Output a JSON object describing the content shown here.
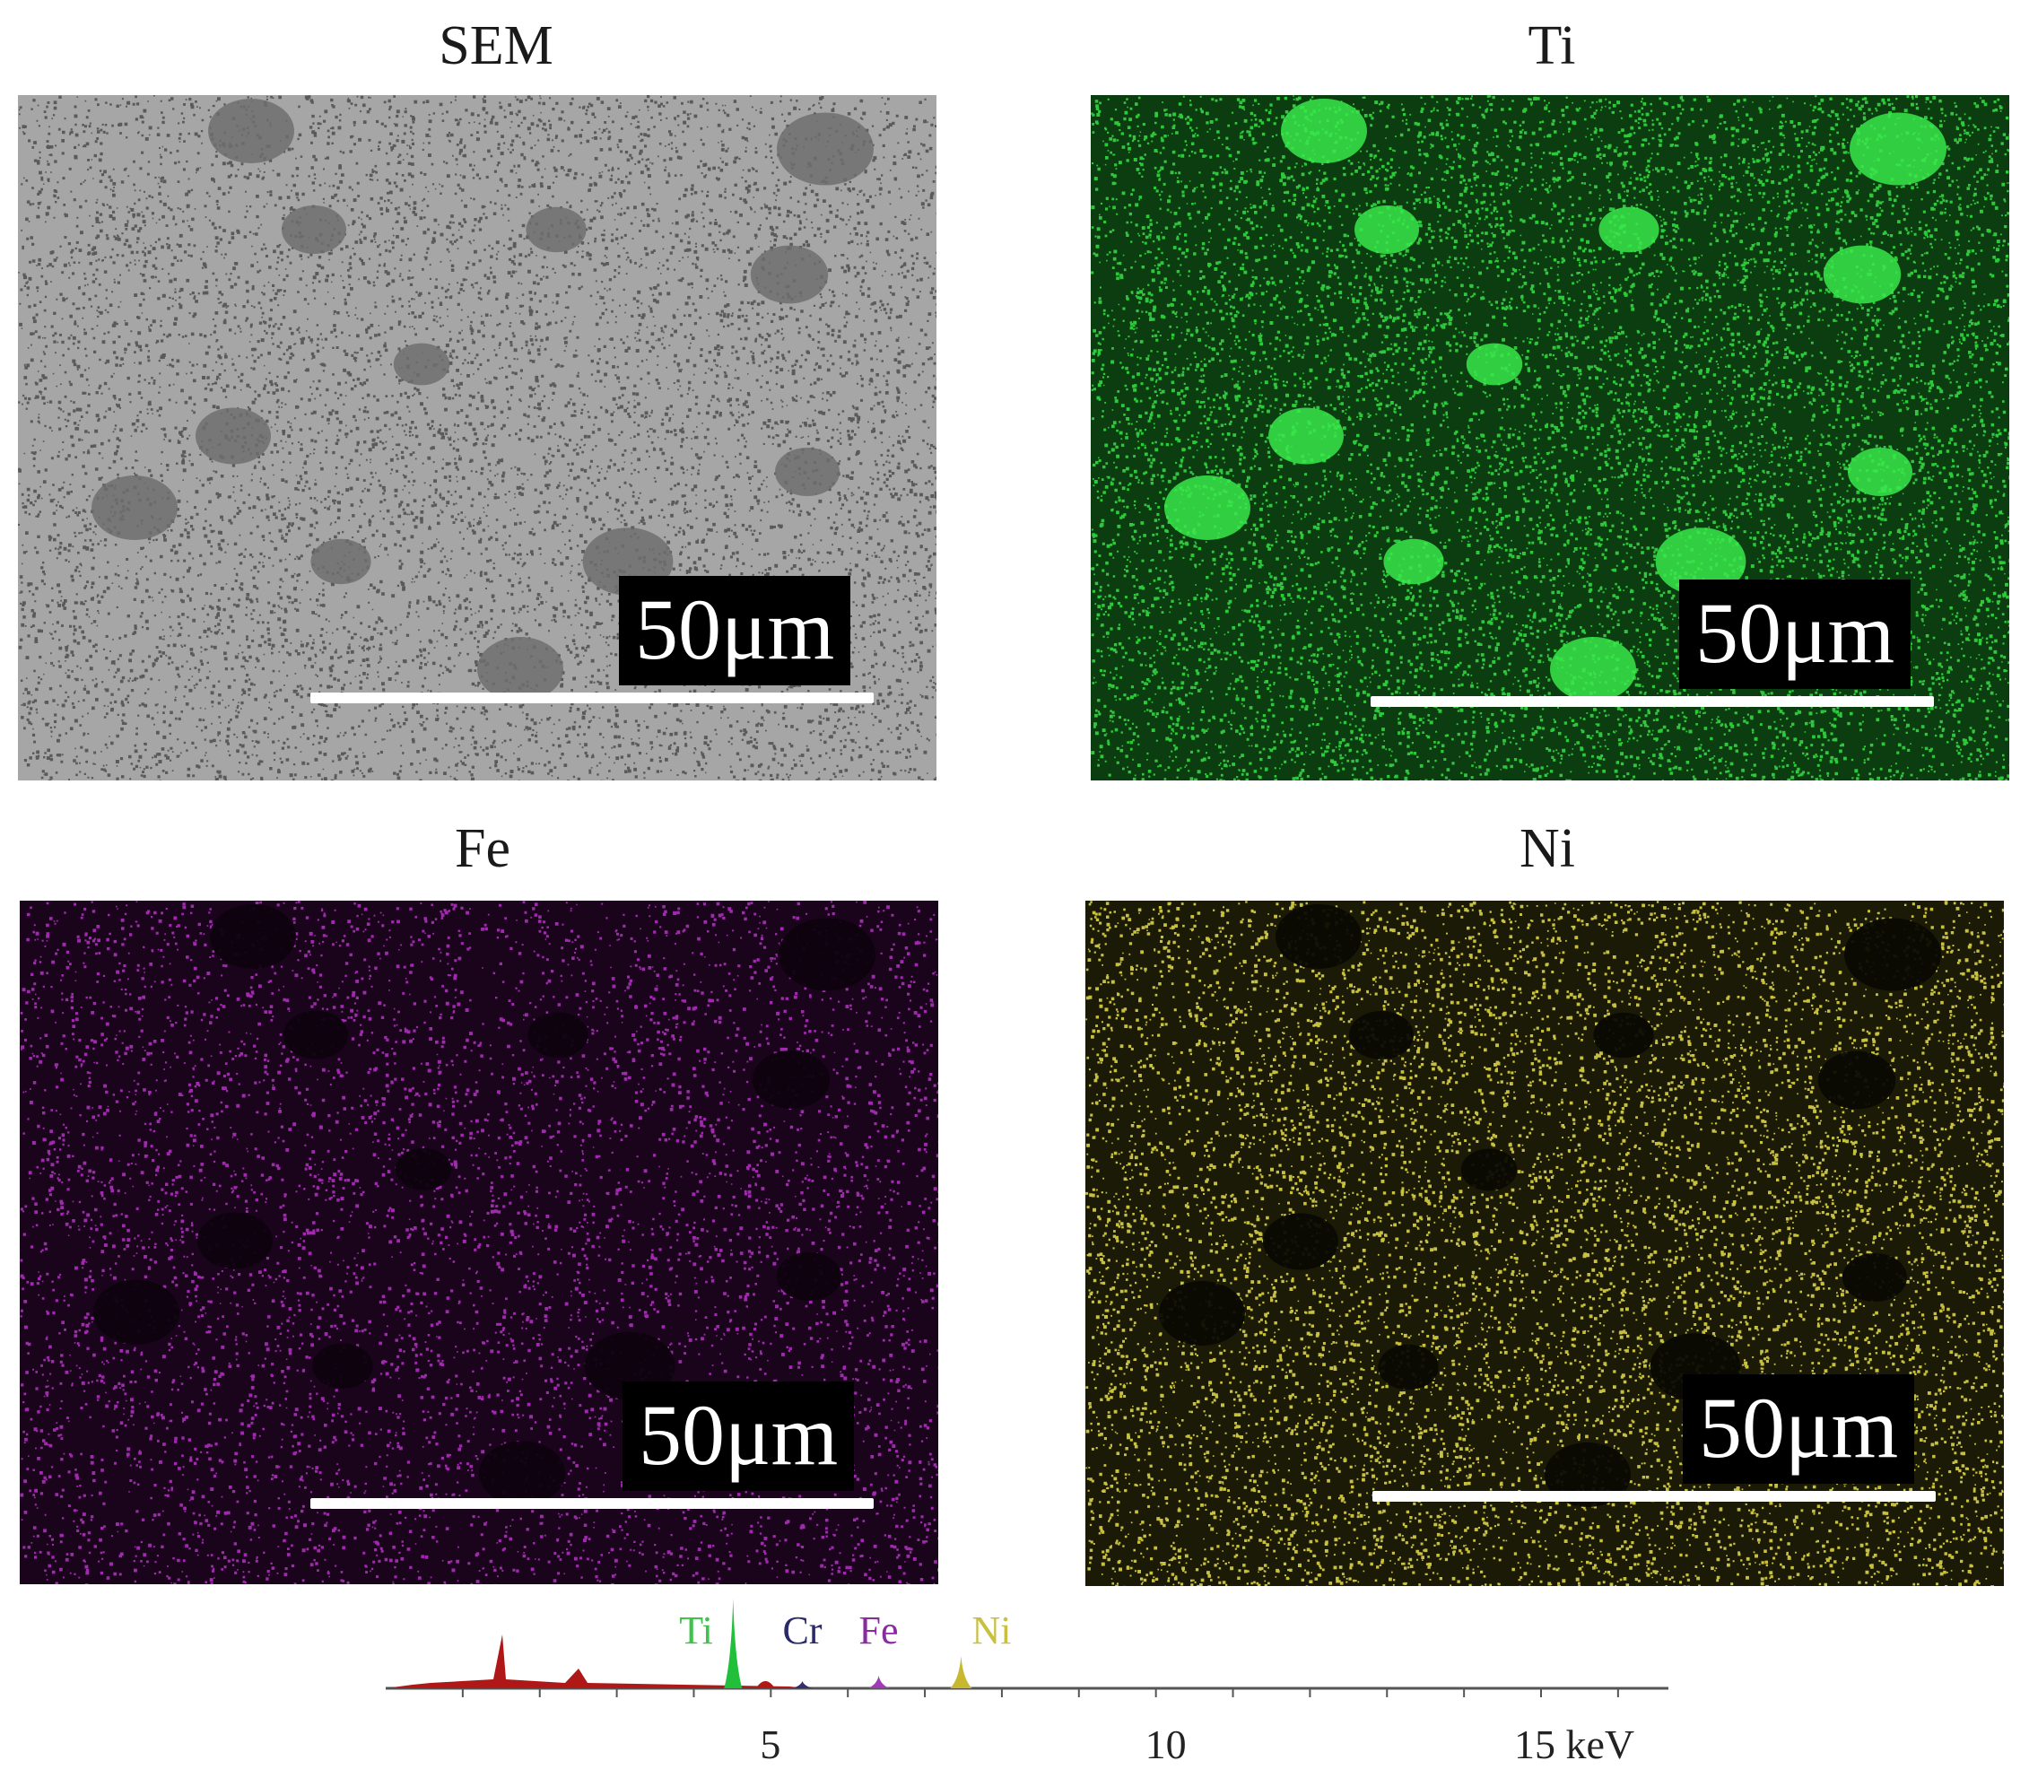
{
  "panels": {
    "sem": {
      "title": "SEM",
      "scale_label": "50μm",
      "color": "#8f8f8f"
    },
    "ti": {
      "title": "Ti",
      "scale_label": "50μm",
      "color": "#22d03a"
    },
    "fe": {
      "title": "Fe",
      "scale_label": "50μm",
      "color": "#b638c2"
    },
    "ni": {
      "title": "Ni",
      "scale_label": "50μm",
      "color": "#d8d040"
    }
  },
  "spectrum": {
    "axis_unit": "keV",
    "ticks": [
      {
        "value": 5,
        "label": "5"
      },
      {
        "value": 10,
        "label": "10"
      },
      {
        "value": 15,
        "label": "15 keV"
      }
    ],
    "peaks": [
      {
        "element": "Ti",
        "energy": 4.51,
        "label_color": "#3ec24a",
        "fill": "#22c03a"
      },
      {
        "element": "Cr",
        "energy": 5.41,
        "label_color": "#2a2a6a",
        "fill": "#303070"
      },
      {
        "element": "Fe",
        "energy": 6.4,
        "label_color": "#8a2aa0",
        "fill": "#a03ab8"
      },
      {
        "element": "Ni",
        "energy": 7.47,
        "label_color": "#c8c040",
        "fill": "#c8b830"
      }
    ],
    "baseline_color": "#b01818"
  }
}
